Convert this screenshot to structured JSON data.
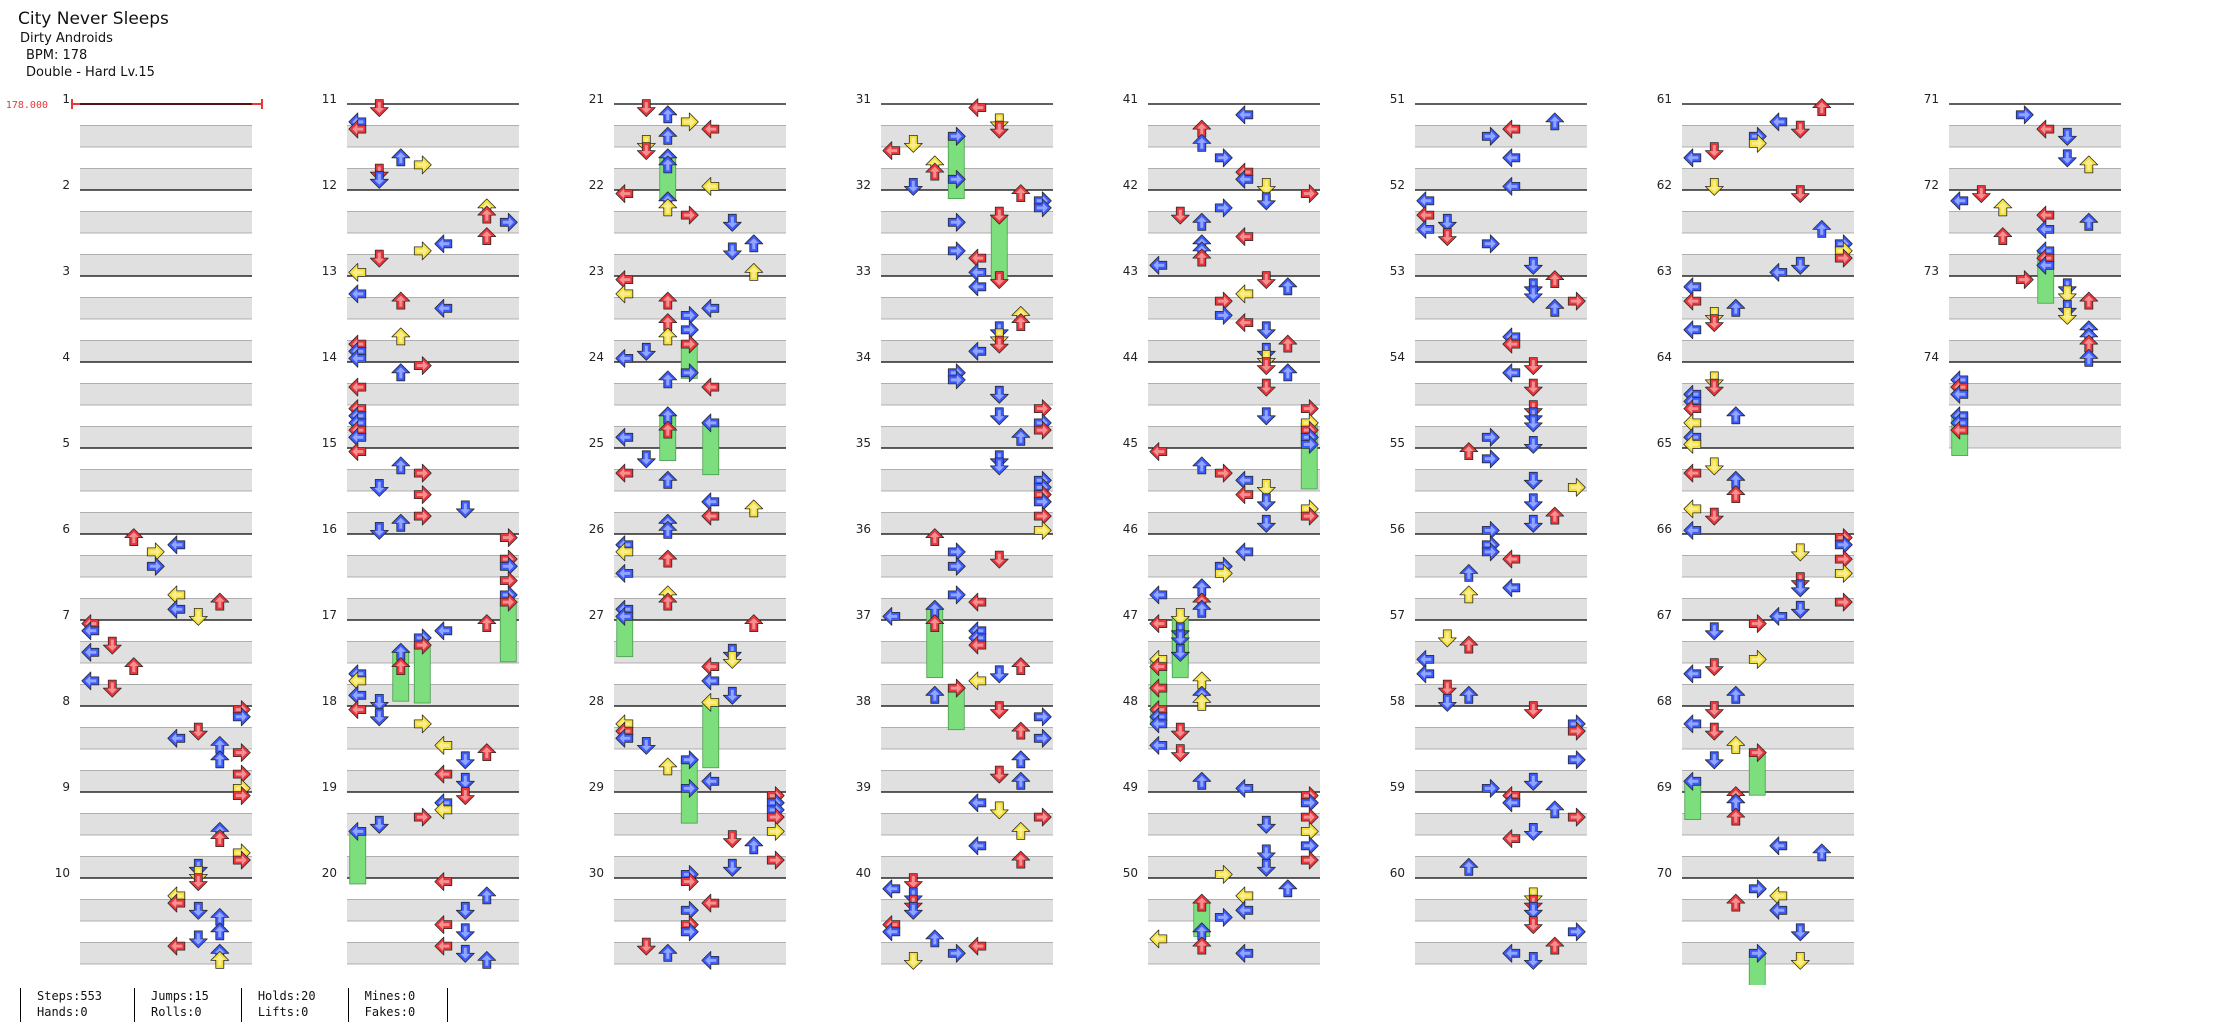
{
  "song": {
    "title": "City Never Sleeps",
    "artist": "Dirty Androids",
    "bpm_label": "BPM: 178",
    "difficulty_label": "Double - Hard  Lv.15"
  },
  "bpm_marker": "178.000",
  "chart_data": {
    "type": "table",
    "style": "Double",
    "difficulty": "Hard",
    "level": 15,
    "bpm": 178,
    "total_measures": 74,
    "measures_per_column": 10,
    "lanes": [
      "left",
      "down",
      "up",
      "right",
      "left",
      "down",
      "up",
      "right"
    ],
    "arrow_colors": {
      "4th": "#e8363b",
      "8th": "#3b5bff",
      "16th": "#f6e03a",
      "hold": "#7dde7d"
    },
    "measure_labels": [
      "1",
      "2",
      "3",
      "4",
      "5",
      "6",
      "7",
      "8",
      "9",
      "10",
      "11",
      "12",
      "13",
      "14",
      "15",
      "16",
      "17",
      "18",
      "19",
      "20",
      "21",
      "22",
      "23",
      "24",
      "25",
      "26",
      "27",
      "28",
      "29",
      "30",
      "31",
      "32",
      "33",
      "34",
      "35",
      "36",
      "37",
      "38",
      "39",
      "40",
      "41",
      "42",
      "43",
      "44",
      "45",
      "46",
      "47",
      "48",
      "49",
      "50",
      "51",
      "52",
      "53",
      "54",
      "55",
      "56",
      "57",
      "58",
      "59",
      "60",
      "61",
      "62",
      "63",
      "64",
      "65",
      "66",
      "67",
      "68",
      "69",
      "70",
      "71",
      "72",
      "73",
      "74"
    ]
  },
  "stats": [
    {
      "line1": "Steps:553",
      "line2": "Hands:0"
    },
    {
      "line1": "Jumps:15",
      "line2": "Rolls:0"
    },
    {
      "line1": "Holds:20",
      "line2": "Lifts:0"
    },
    {
      "line1": "Mines:0",
      "line2": "Fakes:0"
    }
  ]
}
